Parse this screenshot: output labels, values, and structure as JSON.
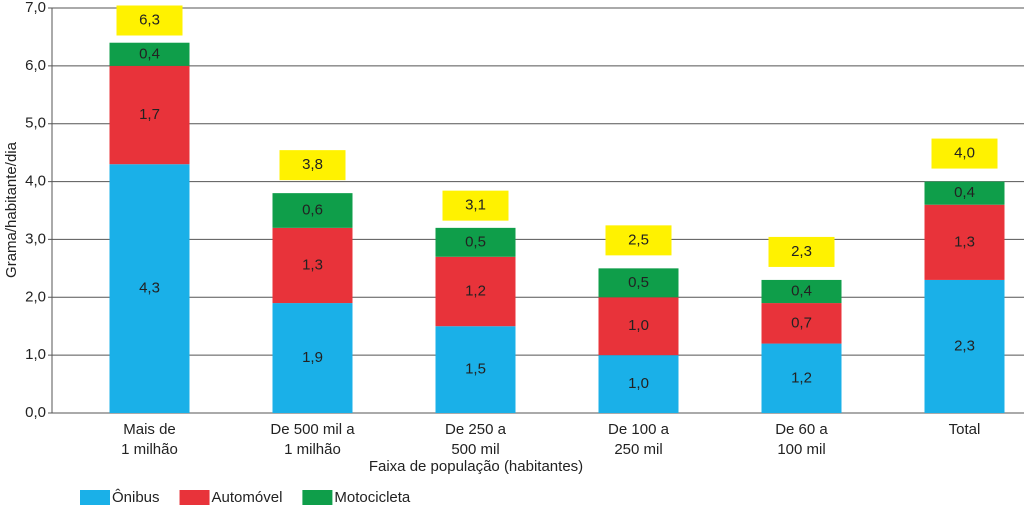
{
  "chart_data": {
    "type": "stacked_bar",
    "y_label": "Grama/habitante/dia",
    "x_label": "Faixa de população (habitantes)",
    "categories": [
      "Mais de\n1 milhão",
      "De 500 mil a\n1 milhão",
      "De 250 a\n500 mil",
      "De 100 a\n250 mil",
      "De 60 a\n100 mil",
      "Total"
    ],
    "series": [
      {
        "name": "Ônibus",
        "color": "#1ab0e8",
        "values": [
          4.3,
          1.9,
          1.5,
          1.0,
          1.2,
          2.3
        ],
        "value_labels": [
          "4,3",
          "1,9",
          "1,5",
          "1,0",
          "1,2",
          "2,3"
        ]
      },
      {
        "name": "Automóvel",
        "color": "#e8333a",
        "values": [
          1.7,
          1.3,
          1.2,
          1.0,
          0.7,
          1.3
        ],
        "value_labels": [
          "1,7",
          "1,3",
          "1,2",
          "1,0",
          "0,7",
          "1,3"
        ]
      },
      {
        "name": "Motocicleta",
        "color": "#0f9e4a",
        "values": [
          0.4,
          0.6,
          0.5,
          0.5,
          0.4,
          0.4
        ],
        "value_labels": [
          "0,4",
          "0,6",
          "0,5",
          "0,5",
          "0,4",
          "0,4"
        ]
      }
    ],
    "totals": {
      "color": "#fff200",
      "values": [
        6.3,
        3.8,
        3.1,
        2.5,
        2.3,
        4.0
      ],
      "value_labels": [
        "6,3",
        "3,8",
        "3,1",
        "2,5",
        "2,3",
        "4,0"
      ]
    },
    "ylim": [
      0,
      7
    ],
    "yticks": [
      {
        "value": 0,
        "label": "0,0"
      },
      {
        "value": 1,
        "label": "1,0"
      },
      {
        "value": 2,
        "label": "2,0"
      },
      {
        "value": 3,
        "label": "3,0"
      },
      {
        "value": 4,
        "label": "4,0"
      },
      {
        "value": 5,
        "label": "5,0"
      },
      {
        "value": 6,
        "label": "6,0"
      },
      {
        "value": 7,
        "label": "7,0"
      }
    ],
    "grid": true
  }
}
